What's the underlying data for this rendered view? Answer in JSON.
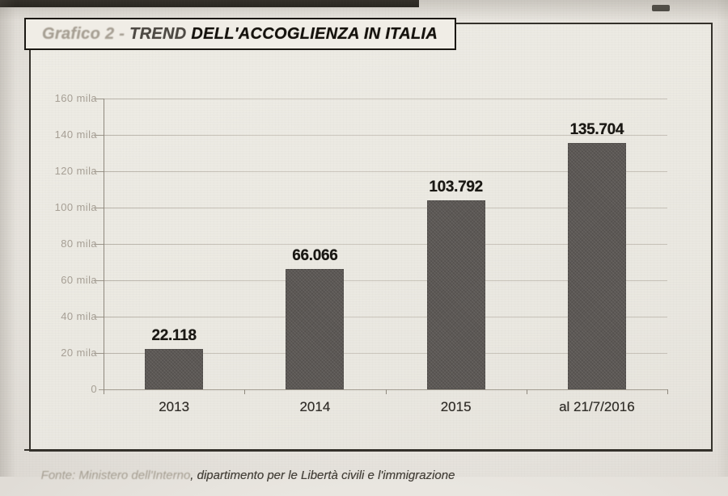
{
  "title_box": {
    "faded_prefix": "Grafico 2 - ",
    "mid": "TREND",
    "main": " DELL'ACCOGLIENZA IN ITALIA"
  },
  "chart_data": {
    "type": "bar",
    "title": "Grafico 2 - TREND DELL'ACCOGLIENZA IN ITALIA",
    "categories": [
      "2013",
      "2014",
      "2015",
      "al 21/7/2016"
    ],
    "values": [
      22118,
      66066,
      103792,
      135704
    ],
    "value_labels": [
      "22.118",
      "66.066",
      "103.792",
      "135.704"
    ],
    "xlabel": "",
    "ylabel": "",
    "ylim": [
      0,
      160000
    ],
    "y_ticks": [
      {
        "value": 0,
        "label": "0"
      },
      {
        "value": 20000,
        "label": "20 mila"
      },
      {
        "value": 40000,
        "label": "40 mila"
      },
      {
        "value": 60000,
        "label": "60 mila"
      },
      {
        "value": 80000,
        "label": "80 mila"
      },
      {
        "value": 100000,
        "label": "100 mila"
      },
      {
        "value": 120000,
        "label": "120 mila"
      },
      {
        "value": 140000,
        "label": "140 mila"
      },
      {
        "value": 160000,
        "label": "160 mila"
      }
    ],
    "grid": true,
    "legend": false,
    "bar_color": "#5c5855"
  },
  "footer": {
    "source_faded": "Fonte: Ministero dell'Interno",
    "source_main": ", dipartimento per le Libertà civili e l'immigrazione"
  }
}
